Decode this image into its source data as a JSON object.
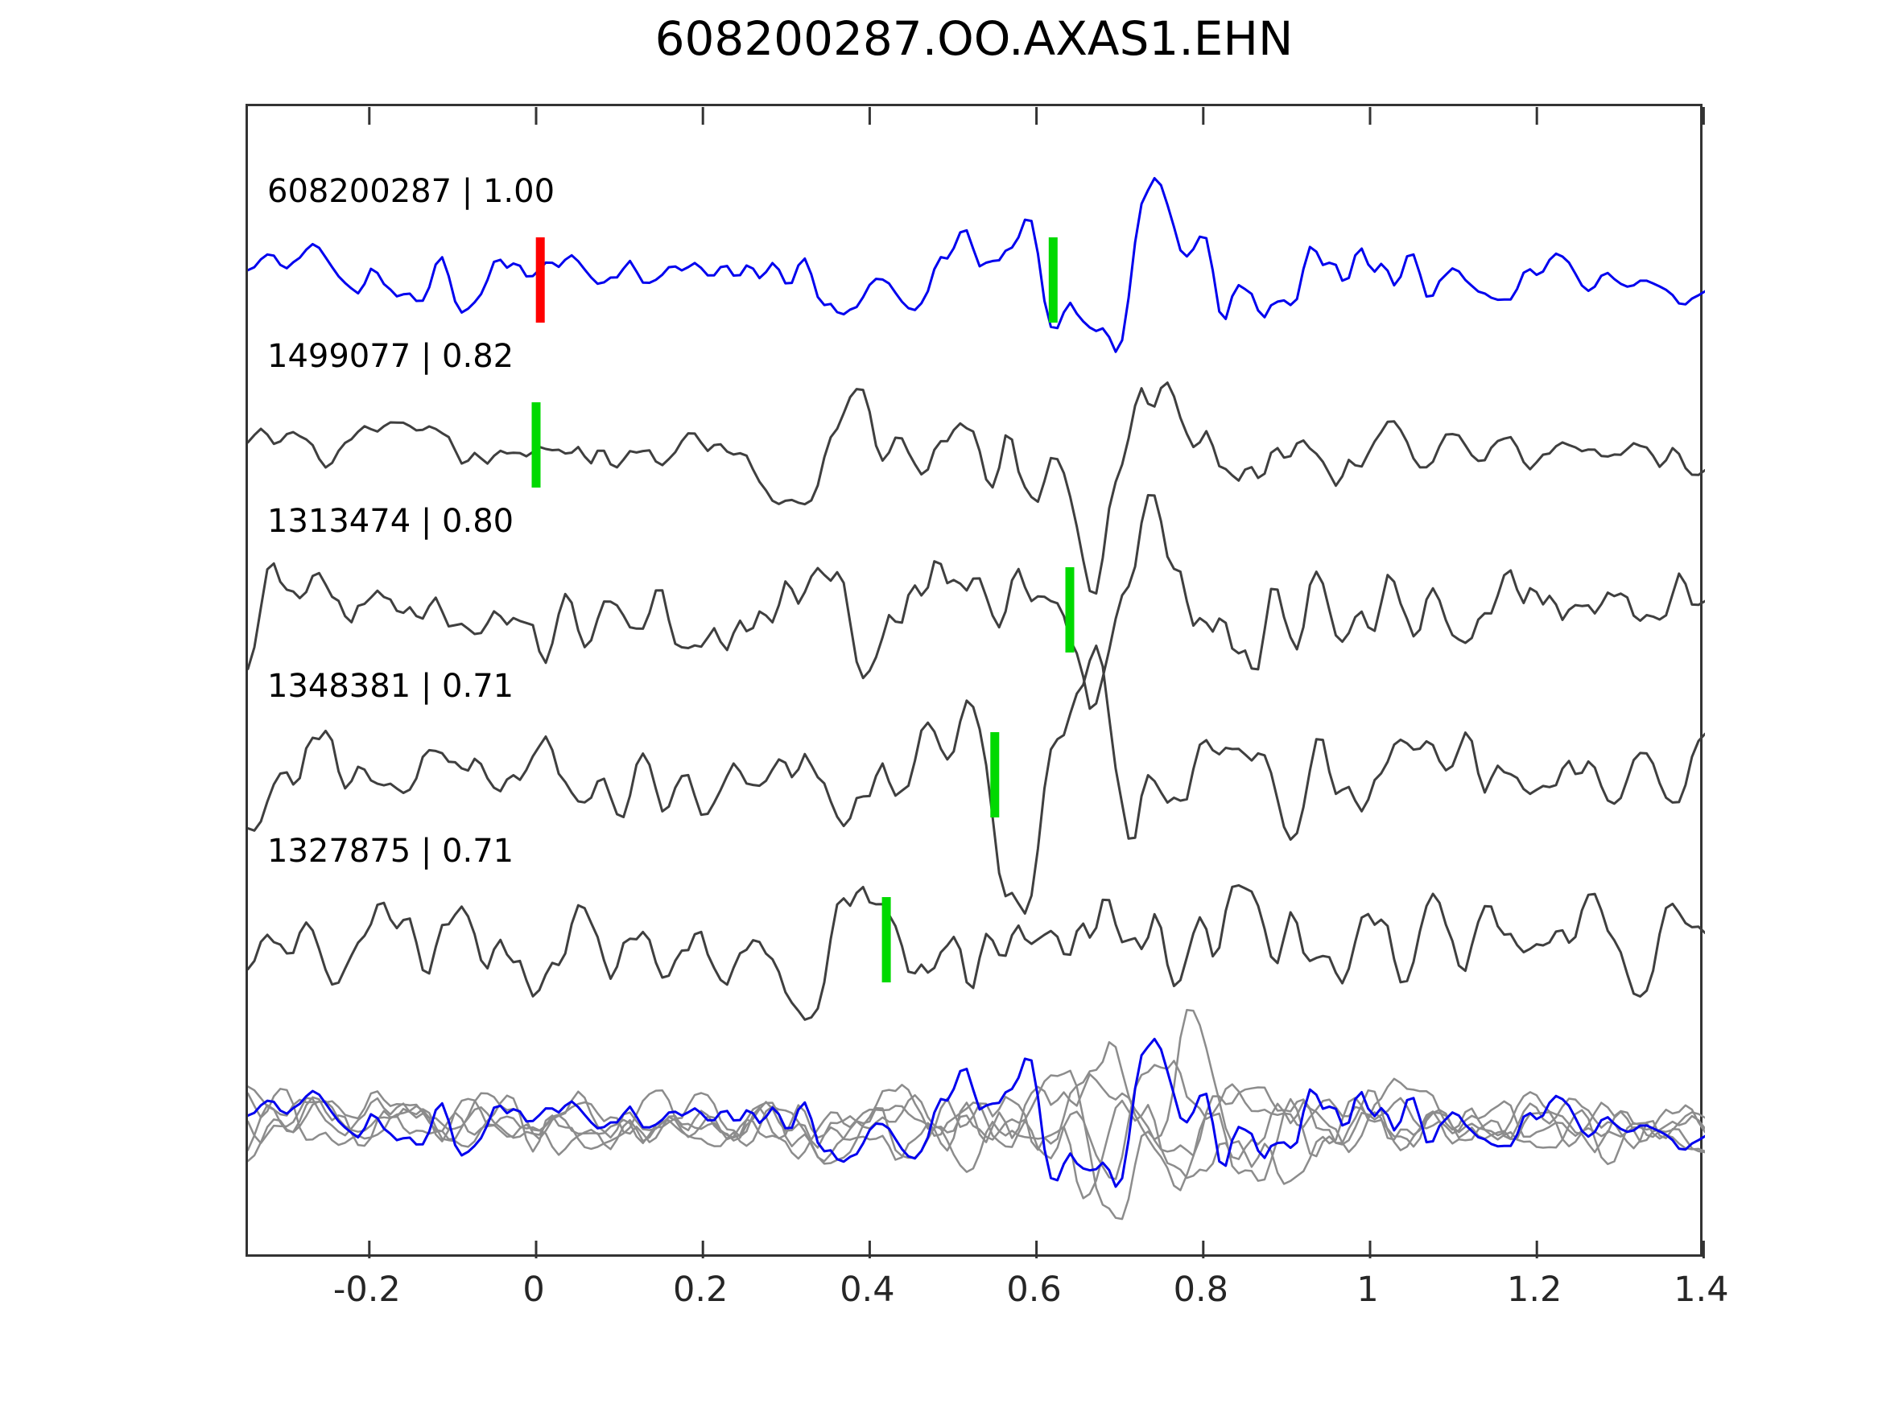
{
  "chart_data": {
    "type": "line",
    "title": "608200287.OO.AXAS1.EHN",
    "xlabel": "",
    "ylabel": "",
    "grid": false,
    "legend": "none",
    "x_axis": {
      "range": [
        -0.35,
        1.4
      ],
      "ticks": [
        -0.2,
        0,
        0.2,
        0.4,
        0.6,
        0.8,
        1,
        1.2,
        1.4
      ],
      "tick_labels": [
        "-0.2",
        "0",
        "0.2",
        "0.4",
        "0.6",
        "0.8",
        "1",
        "1.2",
        "1.4"
      ]
    },
    "y_axis": {
      "ticks": [],
      "tick_labels": []
    },
    "traces": [
      {
        "label": "608200287 | 1.00",
        "event_id": "608200287",
        "correlation": "1.00",
        "color": "#0000EE",
        "picks": [
          {
            "time": 0.005,
            "color": "#FF0000"
          },
          {
            "time": 0.62,
            "color": "#00D900"
          }
        ]
      },
      {
        "label": "1499077 | 0.82",
        "event_id": "1499077",
        "correlation": "0.82",
        "color": "#3F3F3F",
        "picks": [
          {
            "time": 0.0,
            "color": "#00D900"
          }
        ]
      },
      {
        "label": "1313474 | 0.80",
        "event_id": "1313474",
        "correlation": "0.80",
        "color": "#3F3F3F",
        "picks": [
          {
            "time": 0.64,
            "color": "#00D900"
          }
        ]
      },
      {
        "label": "1348381 | 0.71",
        "event_id": "1348381",
        "correlation": "0.71",
        "color": "#3F3F3F",
        "picks": [
          {
            "time": 0.55,
            "color": "#00D900"
          }
        ]
      },
      {
        "label": "1327875 | 0.71",
        "event_id": "1327875",
        "correlation": "0.71",
        "color": "#3F3F3F",
        "picks": [
          {
            "time": 0.42,
            "color": "#00D900"
          }
        ]
      }
    ],
    "overlay": {
      "gray_trace_count": 5,
      "gray_color": "#8C8C8C",
      "highlight_color": "#0000EE",
      "picks": []
    }
  },
  "styles": {
    "background": "#FFFFFF",
    "axis_color": "#333333",
    "text_color": "#000000"
  }
}
